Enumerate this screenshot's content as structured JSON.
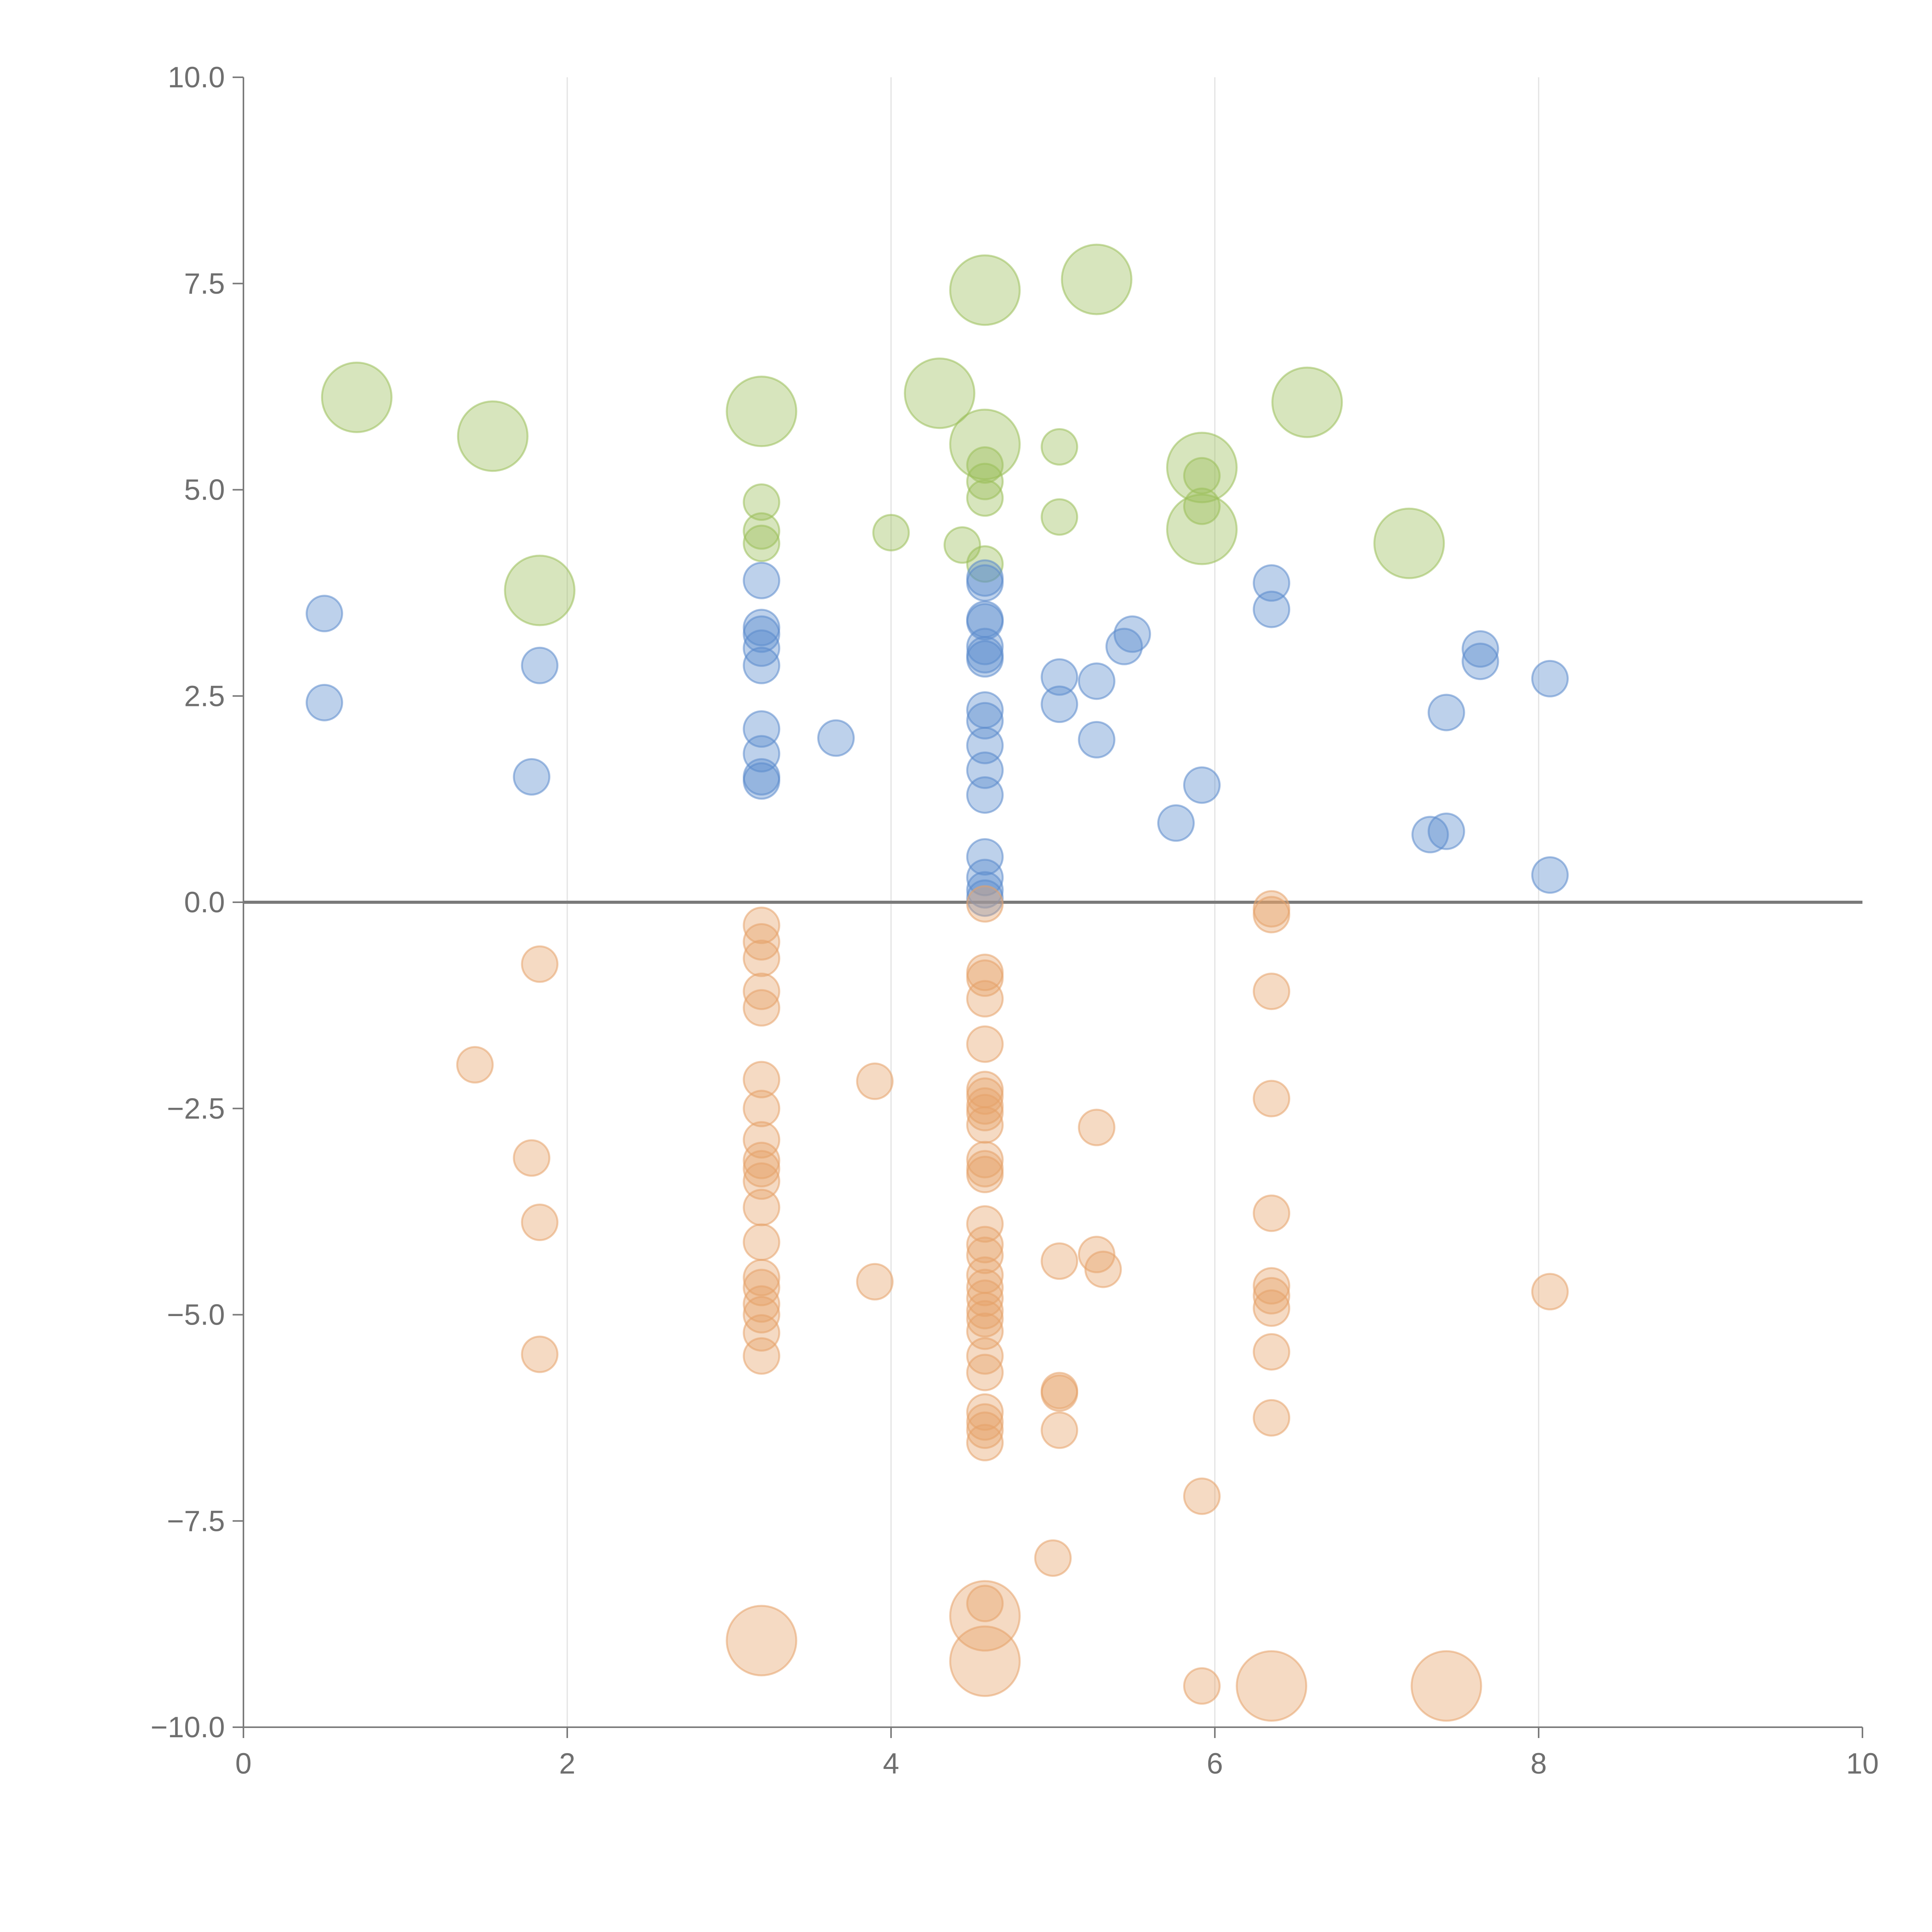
{
  "chart_data": {
    "type": "scatter",
    "title": "",
    "xlabel": "",
    "ylabel": "",
    "xlim": [
      0,
      10
    ],
    "ylim": [
      -10,
      10
    ],
    "x_ticks": [
      0,
      2,
      4,
      6,
      8,
      10
    ],
    "x_tick_labels": [
      "0",
      "2",
      "4",
      "6",
      "8",
      "10"
    ],
    "y_ticks": [
      10,
      7.5,
      5,
      2.5,
      0,
      -2.5,
      -5,
      -7.5,
      -10
    ],
    "y_tick_labels": [
      "10.0",
      "7.5",
      "5.0",
      "2.5",
      "0.0",
      "−2.5",
      "−5.0",
      "−7.5",
      "−10.0"
    ],
    "grid": "vertical",
    "reference_line_y": 0,
    "series": [
      {
        "name": "green",
        "color": "#9bbf5a",
        "points": [
          [
            0.7,
            6.12,
            2
          ],
          [
            1.54,
            5.65,
            2
          ],
          [
            1.83,
            3.78,
            2
          ],
          [
            3.2,
            5.95,
            2
          ],
          [
            3.2,
            4.85,
            1
          ],
          [
            3.2,
            4.5,
            1
          ],
          [
            3.2,
            4.35,
            1
          ],
          [
            4.0,
            4.48,
            1
          ],
          [
            4.3,
            6.17,
            2
          ],
          [
            4.44,
            4.33,
            1
          ],
          [
            4.58,
            7.42,
            2
          ],
          [
            4.58,
            5.55,
            2
          ],
          [
            4.58,
            5.3,
            1
          ],
          [
            4.58,
            5.1,
            1
          ],
          [
            4.58,
            4.9,
            1
          ],
          [
            4.58,
            4.1,
            1
          ],
          [
            5.04,
            5.52,
            1
          ],
          [
            5.04,
            4.67,
            1
          ],
          [
            5.27,
            7.55,
            2
          ],
          [
            5.92,
            5.27,
            2
          ],
          [
            5.92,
            5.17,
            1
          ],
          [
            5.92,
            4.8,
            1
          ],
          [
            5.92,
            4.52,
            2
          ],
          [
            6.57,
            6.06,
            2
          ],
          [
            7.2,
            4.35,
            2
          ]
        ]
      },
      {
        "name": "blue",
        "color": "#5b8bcc",
        "points": [
          [
            0.5,
            3.5,
            1
          ],
          [
            0.5,
            2.42,
            1
          ],
          [
            1.78,
            1.52,
            1
          ],
          [
            1.83,
            2.87,
            1
          ],
          [
            3.2,
            3.9,
            1
          ],
          [
            3.2,
            3.33,
            1
          ],
          [
            3.2,
            3.25,
            1
          ],
          [
            3.2,
            3.08,
            1
          ],
          [
            3.2,
            2.87,
            1
          ],
          [
            3.2,
            2.1,
            1
          ],
          [
            3.2,
            1.8,
            1
          ],
          [
            3.2,
            1.52,
            1
          ],
          [
            3.2,
            1.47,
            1
          ],
          [
            3.66,
            1.99,
            1
          ],
          [
            4.58,
            3.93,
            1
          ],
          [
            4.58,
            3.87,
            1
          ],
          [
            4.58,
            3.43,
            1
          ],
          [
            4.58,
            3.4,
            1
          ],
          [
            4.58,
            3.1,
            1
          ],
          [
            4.58,
            3.0,
            1
          ],
          [
            4.58,
            2.95,
            1
          ],
          [
            4.58,
            2.33,
            1
          ],
          [
            4.58,
            2.2,
            1
          ],
          [
            4.58,
            1.9,
            1
          ],
          [
            4.58,
            1.6,
            1
          ],
          [
            4.58,
            1.3,
            1
          ],
          [
            4.58,
            0.55,
            1
          ],
          [
            4.58,
            0.3,
            1
          ],
          [
            4.58,
            0.15,
            1
          ],
          [
            4.58,
            0.05,
            1
          ],
          [
            5.04,
            2.73,
            1
          ],
          [
            5.04,
            2.4,
            1
          ],
          [
            5.27,
            2.68,
            1
          ],
          [
            5.27,
            1.97,
            1
          ],
          [
            5.44,
            3.1,
            1
          ],
          [
            5.49,
            3.25,
            1
          ],
          [
            5.76,
            0.96,
            1
          ],
          [
            5.92,
            1.42,
            1
          ],
          [
            6.35,
            3.87,
            1
          ],
          [
            6.35,
            3.55,
            1
          ],
          [
            7.33,
            0.82,
            1
          ],
          [
            7.43,
            2.3,
            1
          ],
          [
            7.43,
            0.86,
            1
          ],
          [
            7.64,
            3.07,
            1
          ],
          [
            7.64,
            2.92,
            1
          ],
          [
            8.07,
            2.71,
            1
          ],
          [
            8.07,
            0.33,
            1
          ]
        ]
      },
      {
        "name": "orange",
        "color": "#e6a26a",
        "points": [
          [
            1.43,
            -1.97,
            1
          ],
          [
            1.78,
            -3.1,
            1
          ],
          [
            1.83,
            -0.75,
            1
          ],
          [
            1.83,
            -3.88,
            1
          ],
          [
            1.83,
            -5.48,
            1
          ],
          [
            3.2,
            -0.28,
            1
          ],
          [
            3.2,
            -0.48,
            1
          ],
          [
            3.2,
            -0.68,
            1
          ],
          [
            3.2,
            -1.08,
            1
          ],
          [
            3.2,
            -1.28,
            1
          ],
          [
            3.2,
            -2.15,
            1
          ],
          [
            3.2,
            -2.5,
            1
          ],
          [
            3.2,
            -2.88,
            1
          ],
          [
            3.2,
            -3.13,
            1
          ],
          [
            3.2,
            -3.23,
            1
          ],
          [
            3.2,
            -3.38,
            1
          ],
          [
            3.2,
            -3.7,
            1
          ],
          [
            3.2,
            -4.12,
            1
          ],
          [
            3.2,
            -4.55,
            1
          ],
          [
            3.2,
            -4.67,
            1
          ],
          [
            3.2,
            -4.87,
            1
          ],
          [
            3.2,
            -5.0,
            1
          ],
          [
            3.2,
            -5.22,
            1
          ],
          [
            3.2,
            -5.5,
            1
          ],
          [
            3.2,
            -8.95,
            2
          ],
          [
            3.9,
            -2.17,
            1
          ],
          [
            3.9,
            -4.6,
            1
          ],
          [
            4.58,
            -0.02,
            1
          ],
          [
            4.58,
            -0.85,
            1
          ],
          [
            4.58,
            -0.92,
            1
          ],
          [
            4.58,
            -1.17,
            1
          ],
          [
            4.58,
            -1.72,
            1
          ],
          [
            4.58,
            -2.27,
            1
          ],
          [
            4.58,
            -2.35,
            1
          ],
          [
            4.58,
            -2.47,
            1
          ],
          [
            4.58,
            -2.55,
            1
          ],
          [
            4.58,
            -2.7,
            1
          ],
          [
            4.58,
            -3.12,
            1
          ],
          [
            4.58,
            -3.23,
            1
          ],
          [
            4.58,
            -3.3,
            1
          ],
          [
            4.58,
            -3.9,
            1
          ],
          [
            4.58,
            -4.15,
            1
          ],
          [
            4.58,
            -4.28,
            1
          ],
          [
            4.58,
            -4.52,
            1
          ],
          [
            4.58,
            -4.67,
            1
          ],
          [
            4.58,
            -4.8,
            1
          ],
          [
            4.58,
            -4.95,
            1
          ],
          [
            4.58,
            -5.05,
            1
          ],
          [
            4.58,
            -5.2,
            1
          ],
          [
            4.58,
            -5.5,
            1
          ],
          [
            4.58,
            -5.7,
            1
          ],
          [
            4.58,
            -6.18,
            1
          ],
          [
            4.58,
            -6.3,
            1
          ],
          [
            4.58,
            -6.4,
            1
          ],
          [
            4.58,
            -6.55,
            1
          ],
          [
            4.58,
            -8.5,
            1
          ],
          [
            4.58,
            -8.65,
            2
          ],
          [
            4.58,
            -9.2,
            2
          ],
          [
            5.0,
            -7.95,
            1
          ],
          [
            5.04,
            -4.35,
            1
          ],
          [
            5.04,
            -5.92,
            1
          ],
          [
            5.04,
            -5.95,
            1
          ],
          [
            5.04,
            -6.4,
            1
          ],
          [
            5.27,
            -2.73,
            1
          ],
          [
            5.27,
            -4.27,
            1
          ],
          [
            5.31,
            -4.45,
            1
          ],
          [
            5.92,
            -7.2,
            1
          ],
          [
            5.92,
            -9.5,
            1
          ],
          [
            6.35,
            -0.08,
            1
          ],
          [
            6.35,
            -0.15,
            1
          ],
          [
            6.35,
            -1.08,
            1
          ],
          [
            6.35,
            -2.38,
            1
          ],
          [
            6.35,
            -3.77,
            1
          ],
          [
            6.35,
            -4.65,
            1
          ],
          [
            6.35,
            -4.77,
            1
          ],
          [
            6.35,
            -4.92,
            1
          ],
          [
            6.35,
            -5.45,
            1
          ],
          [
            6.35,
            -6.25,
            1
          ],
          [
            6.35,
            -9.5,
            2
          ],
          [
            7.43,
            -9.5,
            2
          ],
          [
            8.07,
            -4.72,
            1
          ]
        ]
      }
    ]
  }
}
